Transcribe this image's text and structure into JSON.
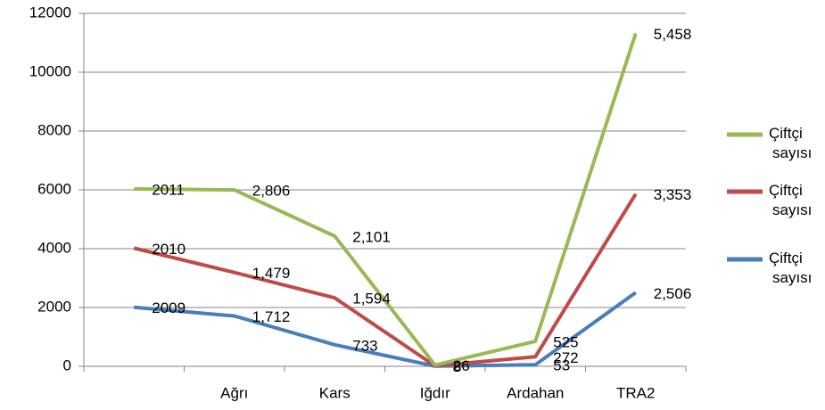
{
  "chart_data": {
    "type": "line",
    "stacked": true,
    "categories": [
      null,
      "Ağrı",
      "Kars",
      "Iğdır",
      "Ardahan",
      "TRA2"
    ],
    "series": [
      {
        "name": "Çiftçi sayısı",
        "color": "#4a7ebb",
        "values": [
          2009,
          1712,
          733,
          8,
          53,
          2506
        ],
        "value_labels": [
          "2009",
          "1,712",
          "733",
          "8",
          "53",
          "2,506"
        ]
      },
      {
        "name": "Çiftçi sayısı",
        "color": "#be4b48",
        "values": [
          2010,
          1479,
          1594,
          8,
          272,
          3353
        ],
        "value_labels": [
          "2010",
          "1,479",
          "1,594",
          "8",
          "272",
          "3,353"
        ]
      },
      {
        "name": "Çiftçi sayısı",
        "color": "#98b954",
        "values": [
          2011,
          2806,
          2101,
          26,
          525,
          5458
        ],
        "value_labels": [
          "2011",
          "2,806",
          "2,101",
          "26",
          "525",
          "5,458"
        ]
      }
    ],
    "ylim": [
      0,
      12000
    ],
    "yticks": [
      0,
      2000,
      4000,
      6000,
      8000,
      10000,
      12000
    ],
    "grid": true,
    "legend": "right"
  }
}
